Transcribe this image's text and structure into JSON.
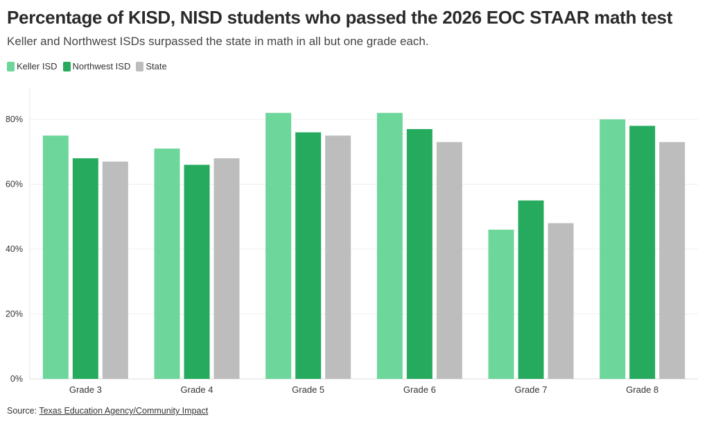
{
  "title": "Percentage of KISD, NISD students who passed the 2026 EOC STAAR math test",
  "subtitle": "Keller and Northwest ISDs surpassed the state in math in all but one grade each.",
  "source": {
    "label": "Source: ",
    "link_text": "Texas Education Agency/Community Impact"
  },
  "chart_data": {
    "type": "bar",
    "categories": [
      "Grade 3",
      "Grade 4",
      "Grade 5",
      "Grade 6",
      "Grade 7",
      "Grade 8"
    ],
    "series": [
      {
        "name": "Keller ISD",
        "color": "#6dd69b",
        "values": [
          75,
          71,
          82,
          82,
          46,
          80
        ]
      },
      {
        "name": "Northwest ISD",
        "color": "#26ab5e",
        "values": [
          68,
          66,
          76,
          77,
          55,
          78
        ]
      },
      {
        "name": "State",
        "color": "#bdbdbd",
        "values": [
          67,
          68,
          75,
          73,
          48,
          73
        ]
      }
    ],
    "yticks": [
      {
        "value": 0,
        "label": "0%"
      },
      {
        "value": 20,
        "label": "20%"
      },
      {
        "value": 40,
        "label": "40%"
      },
      {
        "value": 60,
        "label": "60%"
      },
      {
        "value": 80,
        "label": "80%"
      }
    ],
    "ylim": [
      0,
      90
    ],
    "xlabel": "",
    "ylabel": "",
    "grid": true,
    "legend_position": "top-left"
  }
}
